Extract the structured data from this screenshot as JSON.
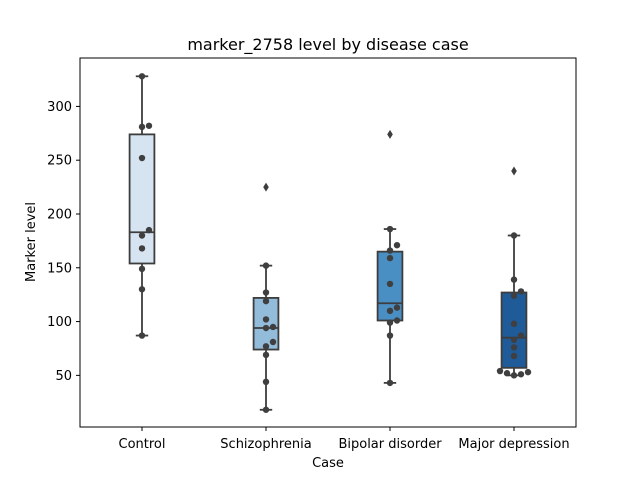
{
  "chart_data": {
    "type": "box",
    "title": "marker_2758 level by disease case",
    "xlabel": "Case",
    "ylabel": "Marker level",
    "ylim": [
      2,
      345
    ],
    "yticks": [
      50,
      100,
      150,
      200,
      250,
      300
    ],
    "grid": false,
    "legend": "none",
    "categories": [
      "Control",
      "Schizophrenia",
      "Bipolar disorder",
      "Major depression"
    ],
    "series": [
      {
        "box": {
          "whisker_low": 87,
          "q1": 154,
          "median": 183,
          "q3": 274,
          "whisker_high": 328
        },
        "outliers": [],
        "points": [
          328,
          282,
          281,
          252,
          185,
          180,
          168,
          149,
          130,
          87
        ],
        "color": "#d6e4f2"
      },
      {
        "box": {
          "whisker_low": 18,
          "q1": 74,
          "median": 94,
          "q3": 122,
          "whisker_high": 152
        },
        "outliers": [
          225
        ],
        "points": [
          152,
          127,
          119,
          102,
          95,
          94,
          81,
          77,
          69,
          44,
          18
        ],
        "color": "#93bcdb"
      },
      {
        "box": {
          "whisker_low": 43,
          "q1": 101,
          "median": 117,
          "q3": 165,
          "whisker_high": 186
        },
        "outliers": [
          274
        ],
        "points": [
          186,
          171,
          166,
          159,
          135,
          113,
          110,
          101,
          99,
          87,
          43
        ],
        "color": "#4a8fc3"
      },
      {
        "box": {
          "whisker_low": 50,
          "q1": 57,
          "median": 85,
          "q3": 127,
          "whisker_high": 180
        },
        "outliers": [
          240
        ],
        "points": [
          180,
          139,
          128,
          124,
          98,
          87,
          83,
          76,
          68,
          54,
          53,
          52,
          51,
          50
        ],
        "color": "#1f5a99"
      }
    ],
    "colors": {
      "box_edge": "#3d3d3d",
      "point": "#3f3f3f"
    }
  }
}
